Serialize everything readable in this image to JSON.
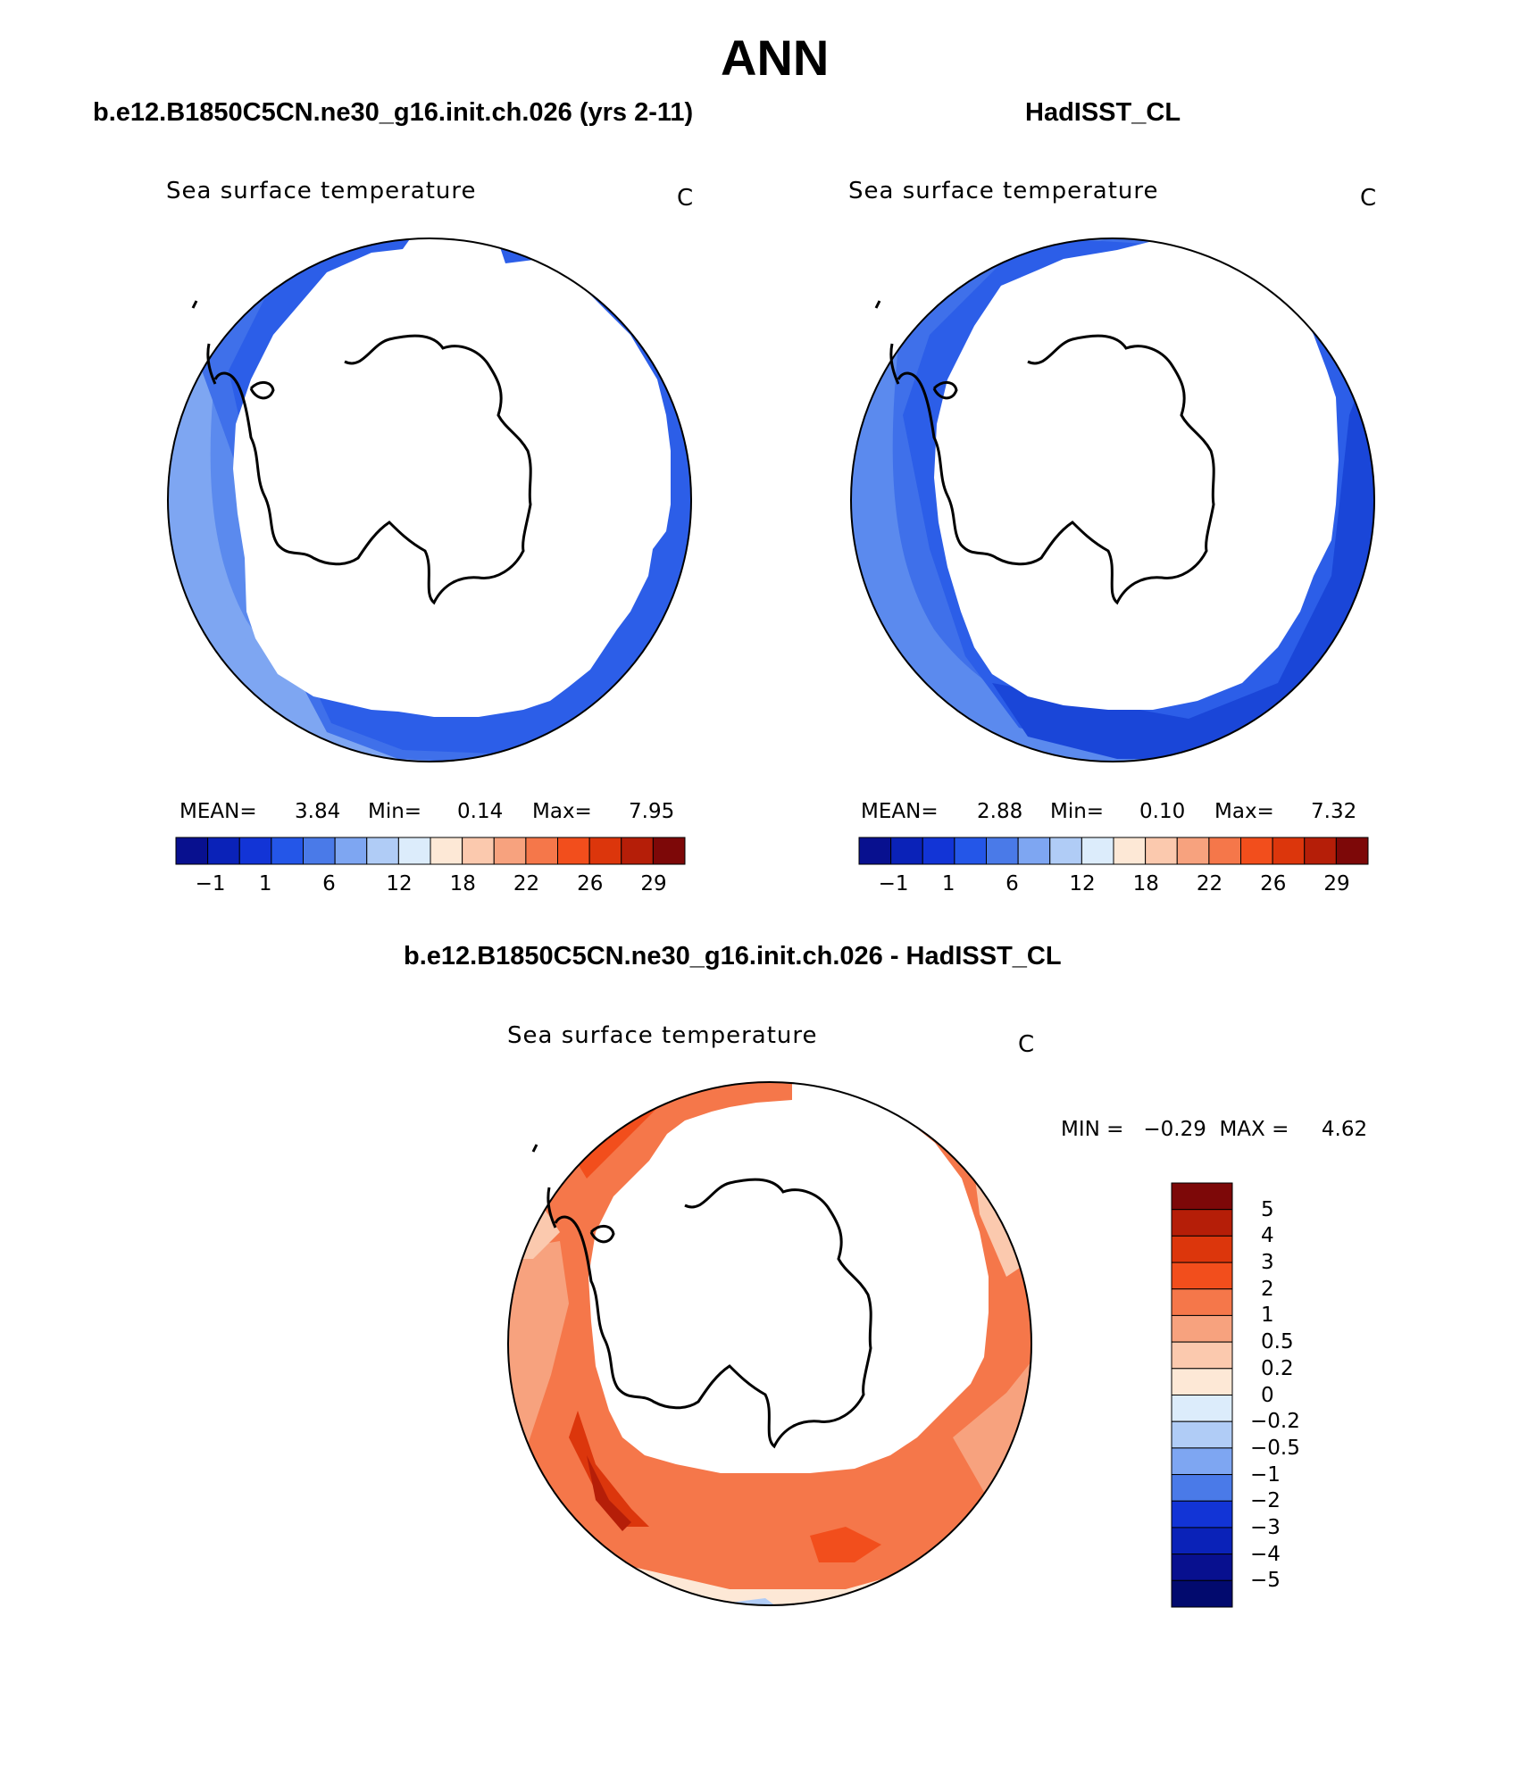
{
  "header": {
    "title": "ANN",
    "left_title": "b.e12.B1850C5CN.ne30_g16.init.ch.026 (yrs 2-11)",
    "right_title": "HadISST_CL",
    "diff_title": "b.e12.B1850C5CN.ne30_g16.init.ch.026 - HadISST_CL"
  },
  "panels": [
    {
      "variable": "Sea surface temperature",
      "units": "C",
      "stats": {
        "mean_label": "MEAN=",
        "mean": "3.84",
        "min_label": "Min=",
        "min": "0.14",
        "max_label": "Max=",
        "max": "7.95"
      }
    },
    {
      "variable": "Sea surface temperature",
      "units": "C",
      "stats": {
        "mean_label": "MEAN=",
        "mean": "2.88",
        "min_label": "Min=",
        "min": "0.10",
        "max_label": "Max=",
        "max": "7.32"
      }
    }
  ],
  "diff_panel": {
    "variable": "Sea surface temperature",
    "units": "C",
    "minmax_text": "MIN =   −0.29  MAX =     4.62"
  },
  "colorbar_horizontal": {
    "colors": [
      "#08108f",
      "#0a22b8",
      "#1234d6",
      "#2456e8",
      "#4a7ae8",
      "#7ea6f2",
      "#b0ccf6",
      "#dcecfb",
      "#fde8d6",
      "#fbc9ae",
      "#f7a27e",
      "#f5774a",
      "#f24e1c",
      "#dc360c",
      "#b51e08",
      "#7d0808"
    ],
    "tick_labels": [
      "−1",
      "1",
      "6",
      "12",
      "18",
      "22",
      "26",
      "29"
    ],
    "tick_boundaries": [
      1,
      3,
      5,
      7,
      9,
      11,
      13,
      15
    ]
  },
  "colorbar_vertical": {
    "colors": [
      "#7d0808",
      "#b51e08",
      "#dc360c",
      "#f24e1c",
      "#f5774a",
      "#f7a27e",
      "#fbc9ae",
      "#fde8d6",
      "#dcecfb",
      "#b0ccf6",
      "#7ea6f2",
      "#4a7ae8",
      "#1234d6",
      "#0a22b8",
      "#08108f",
      "#020a6e"
    ],
    "labels": [
      "5",
      "4",
      "3",
      "2",
      "1",
      "0.5",
      "0.2",
      "0",
      "−0.2",
      "−0.5",
      "−1",
      "−2",
      "−3",
      "−4",
      "−5"
    ]
  },
  "map_colors": {
    "panel1": [
      "#2c5ee8",
      "#3f70ea",
      "#5b8aee",
      "#7ea6f2"
    ],
    "panel2": [
      "#1a46d8",
      "#2c5ee8",
      "#3f70ea",
      "#5b8aee"
    ],
    "diff": [
      "#f5774a",
      "#f24e1c",
      "#f7a27e",
      "#fbc9ae",
      "#dc360c",
      "#b51e08",
      "#fde8d6",
      "#b0ccf6"
    ]
  }
}
